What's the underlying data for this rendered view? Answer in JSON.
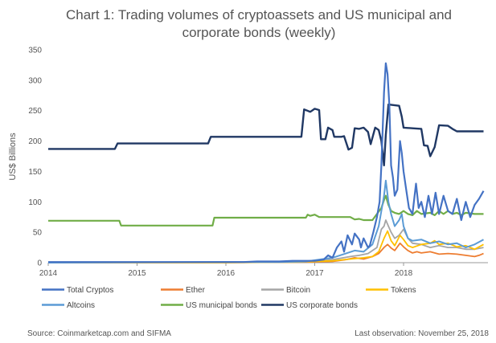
{
  "chart_data": {
    "type": "line",
    "title": "Chart 1: Trading volumes of cryptoassets and US municipal and corporate bonds (weekly)",
    "title_lines": [
      "Chart 1: Trading volumes of cryptoassets and US municipal and",
      "corporate bonds (weekly)"
    ],
    "xlabel": "",
    "ylabel": "US$ Billions",
    "xlim": [
      2014.0,
      2018.95
    ],
    "ylim": [
      0,
      350
    ],
    "yticks": [
      0,
      50,
      100,
      150,
      200,
      250,
      300,
      350
    ],
    "xticks": [
      2014,
      2015,
      2016,
      2017,
      2018
    ],
    "grid": false,
    "legend_position": "bottom",
    "series": [
      {
        "name": "Total Cryptos",
        "color": "#4472C4",
        "width": 2.2,
        "points": [
          [
            2014.0,
            1
          ],
          [
            2014.5,
            1
          ],
          [
            2015.0,
            1
          ],
          [
            2015.5,
            1
          ],
          [
            2016.0,
            1
          ],
          [
            2016.2,
            1
          ],
          [
            2016.35,
            2
          ],
          [
            2016.5,
            2
          ],
          [
            2016.6,
            2
          ],
          [
            2016.75,
            3
          ],
          [
            2016.9,
            3
          ],
          [
            2017.0,
            3
          ],
          [
            2017.1,
            5
          ],
          [
            2017.15,
            12
          ],
          [
            2017.2,
            8
          ],
          [
            2017.25,
            25
          ],
          [
            2017.3,
            35
          ],
          [
            2017.33,
            18
          ],
          [
            2017.37,
            45
          ],
          [
            2017.42,
            30
          ],
          [
            2017.45,
            48
          ],
          [
            2017.5,
            38
          ],
          [
            2017.52,
            25
          ],
          [
            2017.55,
            40
          ],
          [
            2017.6,
            25
          ],
          [
            2017.62,
            28
          ],
          [
            2017.66,
            50
          ],
          [
            2017.7,
            75
          ],
          [
            2017.73,
            100
          ],
          [
            2017.75,
            160
          ],
          [
            2017.78,
            280
          ],
          [
            2017.8,
            328
          ],
          [
            2017.82,
            310
          ],
          [
            2017.84,
            260
          ],
          [
            2017.86,
            160
          ],
          [
            2017.88,
            140
          ],
          [
            2017.9,
            110
          ],
          [
            2017.93,
            120
          ],
          [
            2017.96,
            200
          ],
          [
            2017.98,
            180
          ],
          [
            2018.0,
            150
          ],
          [
            2018.03,
            120
          ],
          [
            2018.06,
            90
          ],
          [
            2018.1,
            80
          ],
          [
            2018.14,
            130
          ],
          [
            2018.17,
            90
          ],
          [
            2018.2,
            100
          ],
          [
            2018.24,
            75
          ],
          [
            2018.28,
            110
          ],
          [
            2018.32,
            80
          ],
          [
            2018.36,
            115
          ],
          [
            2018.4,
            80
          ],
          [
            2018.45,
            110
          ],
          [
            2018.5,
            85
          ],
          [
            2018.55,
            80
          ],
          [
            2018.6,
            105
          ],
          [
            2018.65,
            70
          ],
          [
            2018.7,
            100
          ],
          [
            2018.75,
            75
          ],
          [
            2018.8,
            95
          ],
          [
            2018.85,
            105
          ],
          [
            2018.9,
            118
          ]
        ]
      },
      {
        "name": "Ether",
        "color": "#ED7D31",
        "width": 1.8,
        "points": [
          [
            2014.0,
            0
          ],
          [
            2016.0,
            0
          ],
          [
            2016.3,
            0.5
          ],
          [
            2016.9,
            1
          ],
          [
            2017.2,
            2
          ],
          [
            2017.35,
            5
          ],
          [
            2017.45,
            8
          ],
          [
            2017.55,
            6
          ],
          [
            2017.65,
            10
          ],
          [
            2017.72,
            15
          ],
          [
            2017.78,
            25
          ],
          [
            2017.82,
            30
          ],
          [
            2017.86,
            24
          ],
          [
            2017.9,
            20
          ],
          [
            2017.96,
            32
          ],
          [
            2018.0,
            26
          ],
          [
            2018.05,
            20
          ],
          [
            2018.1,
            16
          ],
          [
            2018.15,
            18
          ],
          [
            2018.2,
            16
          ],
          [
            2018.3,
            18
          ],
          [
            2018.4,
            14
          ],
          [
            2018.5,
            15
          ],
          [
            2018.6,
            14
          ],
          [
            2018.7,
            12
          ],
          [
            2018.8,
            10
          ],
          [
            2018.85,
            12
          ],
          [
            2018.9,
            15
          ]
        ]
      },
      {
        "name": "Bitcoin",
        "color": "#A5A5A5",
        "width": 1.8,
        "points": [
          [
            2014.0,
            0
          ],
          [
            2016.0,
            1
          ],
          [
            2016.5,
            1
          ],
          [
            2016.9,
            2
          ],
          [
            2017.2,
            5
          ],
          [
            2017.4,
            10
          ],
          [
            2017.5,
            12
          ],
          [
            2017.6,
            15
          ],
          [
            2017.7,
            25
          ],
          [
            2017.75,
            55
          ],
          [
            2017.78,
            60
          ],
          [
            2017.8,
            70
          ],
          [
            2017.83,
            60
          ],
          [
            2017.86,
            50
          ],
          [
            2017.9,
            40
          ],
          [
            2017.95,
            45
          ],
          [
            2018.0,
            55
          ],
          [
            2018.05,
            40
          ],
          [
            2018.1,
            32
          ],
          [
            2018.2,
            30
          ],
          [
            2018.3,
            25
          ],
          [
            2018.4,
            28
          ],
          [
            2018.5,
            25
          ],
          [
            2018.6,
            25
          ],
          [
            2018.7,
            22
          ],
          [
            2018.8,
            22
          ],
          [
            2018.9,
            25
          ]
        ]
      },
      {
        "name": "Tokens",
        "color": "#FFC000",
        "width": 1.8,
        "points": [
          [
            2014.0,
            0
          ],
          [
            2016.0,
            0
          ],
          [
            2016.8,
            1
          ],
          [
            2017.2,
            3
          ],
          [
            2017.4,
            6
          ],
          [
            2017.55,
            8
          ],
          [
            2017.65,
            10
          ],
          [
            2017.72,
            18
          ],
          [
            2017.78,
            40
          ],
          [
            2017.82,
            52
          ],
          [
            2017.86,
            36
          ],
          [
            2017.9,
            28
          ],
          [
            2017.96,
            45
          ],
          [
            2018.0,
            38
          ],
          [
            2018.05,
            28
          ],
          [
            2018.1,
            25
          ],
          [
            2018.2,
            30
          ],
          [
            2018.3,
            32
          ],
          [
            2018.35,
            36
          ],
          [
            2018.4,
            30
          ],
          [
            2018.5,
            32
          ],
          [
            2018.6,
            26
          ],
          [
            2018.7,
            28
          ],
          [
            2018.8,
            22
          ],
          [
            2018.9,
            30
          ]
        ]
      },
      {
        "name": "Altcoins",
        "color": "#5B9BD5",
        "width": 2.0,
        "points": [
          [
            2014.0,
            0
          ],
          [
            2016.0,
            1
          ],
          [
            2016.6,
            1
          ],
          [
            2016.9,
            2
          ],
          [
            2017.2,
            8
          ],
          [
            2017.35,
            15
          ],
          [
            2017.45,
            20
          ],
          [
            2017.55,
            18
          ],
          [
            2017.65,
            30
          ],
          [
            2017.72,
            60
          ],
          [
            2017.78,
            110
          ],
          [
            2017.8,
            135
          ],
          [
            2017.83,
            100
          ],
          [
            2017.86,
            80
          ],
          [
            2017.9,
            60
          ],
          [
            2017.95,
            70
          ],
          [
            2017.98,
            80
          ],
          [
            2018.0,
            60
          ],
          [
            2018.05,
            40
          ],
          [
            2018.1,
            36
          ],
          [
            2018.2,
            38
          ],
          [
            2018.3,
            32
          ],
          [
            2018.4,
            35
          ],
          [
            2018.5,
            30
          ],
          [
            2018.6,
            32
          ],
          [
            2018.7,
            25
          ],
          [
            2018.8,
            30
          ],
          [
            2018.9,
            38
          ]
        ]
      },
      {
        "name": "US municipal bonds",
        "color": "#70AD47",
        "width": 2.2,
        "points": [
          [
            2014.0,
            69
          ],
          [
            2014.8,
            69
          ],
          [
            2014.82,
            61
          ],
          [
            2015.5,
            61
          ],
          [
            2015.85,
            61
          ],
          [
            2015.87,
            74
          ],
          [
            2016.9,
            74
          ],
          [
            2016.92,
            79
          ],
          [
            2016.95,
            77
          ],
          [
            2017.0,
            79
          ],
          [
            2017.05,
            75
          ],
          [
            2017.4,
            75
          ],
          [
            2017.45,
            71
          ],
          [
            2017.5,
            72
          ],
          [
            2017.55,
            70
          ],
          [
            2017.65,
            70
          ],
          [
            2017.7,
            80
          ],
          [
            2017.75,
            90
          ],
          [
            2017.78,
            103
          ],
          [
            2017.8,
            110
          ],
          [
            2017.83,
            95
          ],
          [
            2017.86,
            85
          ],
          [
            2017.9,
            82
          ],
          [
            2017.95,
            80
          ],
          [
            2018.0,
            85
          ],
          [
            2018.05,
            80
          ],
          [
            2018.1,
            78
          ],
          [
            2018.15,
            85
          ],
          [
            2018.2,
            80
          ],
          [
            2018.3,
            82
          ],
          [
            2018.35,
            78
          ],
          [
            2018.4,
            85
          ],
          [
            2018.45,
            80
          ],
          [
            2018.5,
            85
          ],
          [
            2018.55,
            80
          ],
          [
            2018.6,
            82
          ],
          [
            2018.65,
            78
          ],
          [
            2018.7,
            82
          ],
          [
            2018.8,
            80
          ],
          [
            2018.9,
            80
          ]
        ]
      },
      {
        "name": "US corporate bonds",
        "color": "#203864",
        "width": 2.4,
        "points": [
          [
            2014.0,
            187
          ],
          [
            2014.75,
            187
          ],
          [
            2014.78,
            196
          ],
          [
            2015.8,
            196
          ],
          [
            2015.83,
            207
          ],
          [
            2016.85,
            207
          ],
          [
            2016.88,
            252
          ],
          [
            2016.95,
            248
          ],
          [
            2017.0,
            253
          ],
          [
            2017.05,
            251
          ],
          [
            2017.07,
            203
          ],
          [
            2017.12,
            203
          ],
          [
            2017.15,
            222
          ],
          [
            2017.2,
            218
          ],
          [
            2017.22,
            207
          ],
          [
            2017.3,
            207
          ],
          [
            2017.33,
            208
          ],
          [
            2017.38,
            186
          ],
          [
            2017.42,
            189
          ],
          [
            2017.45,
            221
          ],
          [
            2017.5,
            220
          ],
          [
            2017.55,
            222
          ],
          [
            2017.6,
            215
          ],
          [
            2017.63,
            195
          ],
          [
            2017.68,
            222
          ],
          [
            2017.72,
            218
          ],
          [
            2017.75,
            200
          ],
          [
            2017.78,
            160
          ],
          [
            2017.8,
            210
          ],
          [
            2017.83,
            260
          ],
          [
            2017.95,
            258
          ],
          [
            2017.98,
            240
          ],
          [
            2018.0,
            222
          ],
          [
            2018.1,
            221
          ],
          [
            2018.2,
            220
          ],
          [
            2018.23,
            193
          ],
          [
            2018.27,
            192
          ],
          [
            2018.3,
            175
          ],
          [
            2018.35,
            190
          ],
          [
            2018.4,
            226
          ],
          [
            2018.5,
            225
          ],
          [
            2018.55,
            220
          ],
          [
            2018.6,
            216
          ],
          [
            2018.9,
            216
          ]
        ]
      }
    ]
  },
  "legend": {
    "items": [
      "Total Cryptos",
      "Ether",
      "Bitcoin",
      "Tokens",
      "Altcoins",
      "US municipal bonds",
      "US corporate bonds"
    ]
  },
  "footer": {
    "source": "Source: Coinmarketcap.com and SIFMA",
    "last_observation": "Last observation: November 25, 2018"
  }
}
